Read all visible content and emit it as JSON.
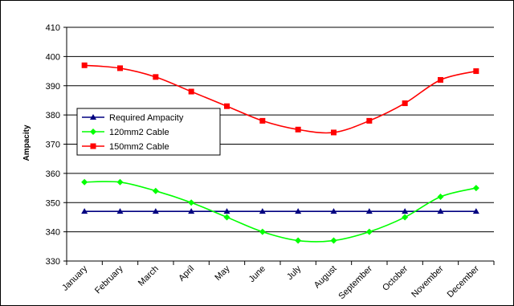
{
  "chart_data": {
    "type": "line",
    "title": "",
    "xlabel": "",
    "ylabel": "Ampacity",
    "ylim": [
      330,
      410
    ],
    "yticks": [
      330,
      340,
      350,
      360,
      370,
      380,
      390,
      400,
      410
    ],
    "grid": "horizontal",
    "legend_position": "left-middle",
    "categories": [
      "January",
      "February",
      "March",
      "April",
      "May",
      "June",
      "July",
      "August",
      "September",
      "October",
      "November",
      "December"
    ],
    "series": [
      {
        "name": "Required Ampacity",
        "color": "#000080",
        "marker": "triangle",
        "values": [
          347,
          347,
          347,
          347,
          347,
          347,
          347,
          347,
          347,
          347,
          347,
          347
        ]
      },
      {
        "name": "120mm2 Cable",
        "color": "#00FF00",
        "marker": "diamond",
        "values": [
          357,
          357,
          354,
          350,
          345,
          340,
          337,
          337,
          340,
          345,
          352,
          355
        ]
      },
      {
        "name": "150mm2 Cable",
        "color": "#FF0000",
        "marker": "square",
        "values": [
          397,
          396,
          393,
          388,
          383,
          378,
          375,
          374,
          378,
          384,
          392,
          395
        ]
      }
    ]
  }
}
